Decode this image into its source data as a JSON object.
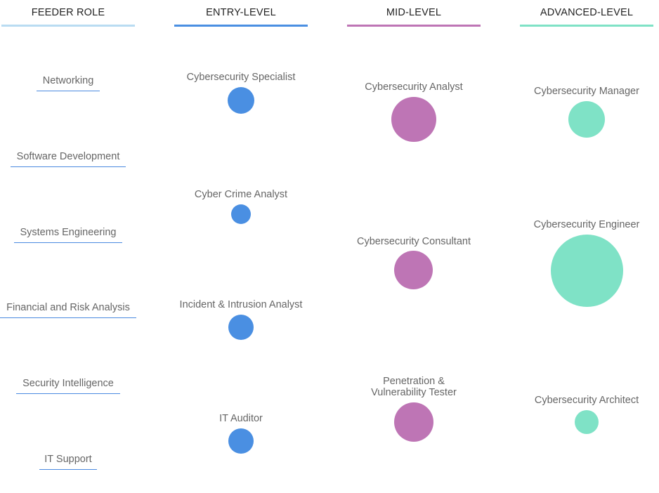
{
  "columns": [
    {
      "title": "FEEDER ROLE",
      "color": "#b9dcf2"
    },
    {
      "title": "ENTRY-LEVEL",
      "color": "#4a8fe2"
    },
    {
      "title": "MID-LEVEL",
      "color": "#be75b5"
    },
    {
      "title": "ADVANCED-LEVEL",
      "color": "#7fe2c6"
    }
  ],
  "feeder_roles": [
    "Networking",
    "Software Development",
    "Systems Engineering",
    "Financial and Risk Analysis",
    "Security Intelligence",
    "IT Support"
  ],
  "entry_level": [
    "Cybersecurity Specialist",
    "Cyber Crime Analyst",
    "Incident & Intrusion Analyst",
    "IT Auditor"
  ],
  "mid_level": [
    "Cybersecurity Analyst",
    "Cybersecurity Consultant",
    "Penetration & Vulnerability Tester"
  ],
  "advanced_level": [
    "Cybersecurity Manager",
    "Cybersecurity Engineer",
    "Cybersecurity Architect"
  ]
}
